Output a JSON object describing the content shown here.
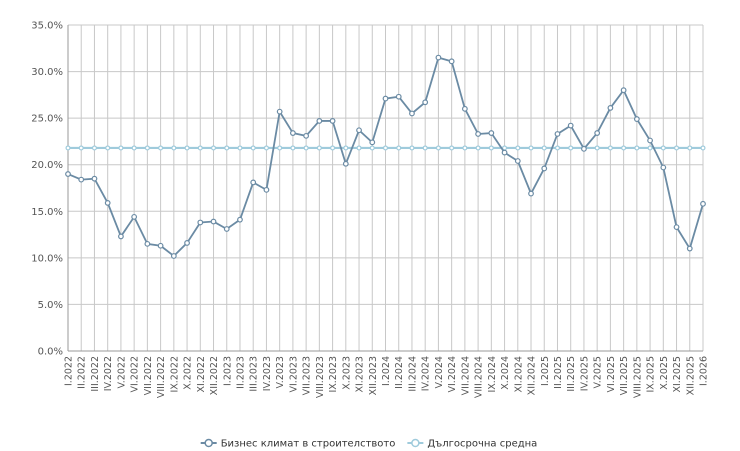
{
  "chart_data": {
    "type": "line",
    "title": "",
    "xlabel": "",
    "ylabel": "",
    "ylim": [
      0,
      35
    ],
    "yticks": [
      "0.0%",
      "5.0%",
      "10.0%",
      "15.0%",
      "20.0%",
      "25.0%",
      "30.0%",
      "35.0%"
    ],
    "grid": true,
    "legend_position": "bottom-center",
    "categories": [
      "I.2022",
      "II.2022",
      "III.2022",
      "IV.2022",
      "V.2022",
      "VI.2022",
      "VII.2022",
      "VIII.2022",
      "IX.2022",
      "X.2022",
      "XI.2022",
      "XII.2022",
      "I.2023",
      "II.2023",
      "III.2023",
      "IV.2023",
      "V.2023",
      "VI.2023",
      "VII.2023",
      "VIII.2023",
      "IX.2023",
      "X.2023",
      "XI.2023",
      "XII.2023",
      "I.2024",
      "II.2024",
      "III.2024",
      "IV.2024",
      "V.2024",
      "VI.2024",
      "VII.2024",
      "VIII.2024",
      "IX.2024",
      "X.2024",
      "XI.2024",
      "XII.2024",
      "I.2025",
      "II.2025",
      "III.2025",
      "IV.2025",
      "V.2025",
      "VI.2025",
      "VII.2025",
      "VIII.2025",
      "IX.2025",
      "X.2025",
      "XI.2025",
      "XII.2025",
      "I.2026"
    ],
    "series": [
      {
        "name": "Бизнес климат в строителството",
        "color": "#6b8ba4",
        "values": [
          19.0,
          18.4,
          18.5,
          15.9,
          12.3,
          14.4,
          11.5,
          11.3,
          10.2,
          11.6,
          13.8,
          13.9,
          13.1,
          14.1,
          18.1,
          17.3,
          25.7,
          23.4,
          23.1,
          24.7,
          24.7,
          20.1,
          23.7,
          22.4,
          27.1,
          27.3,
          25.5,
          26.7,
          31.5,
          31.1,
          26.0,
          23.3,
          23.4,
          21.3,
          20.4,
          16.9,
          19.6,
          23.3,
          24.2,
          21.7,
          23.4,
          26.1,
          28.0,
          24.9,
          22.6,
          19.7,
          13.3,
          11.0,
          15.8
        ]
      },
      {
        "name": "Дългосрочна средна",
        "color": "#9fcbdc",
        "values": [
          21.8,
          21.8,
          21.8,
          21.8,
          21.8,
          21.8,
          21.8,
          21.8,
          21.8,
          21.8,
          21.8,
          21.8,
          21.8,
          21.8,
          21.8,
          21.8,
          21.8,
          21.8,
          21.8,
          21.8,
          21.8,
          21.8,
          21.8,
          21.8,
          21.8,
          21.8,
          21.8,
          21.8,
          21.8,
          21.8,
          21.8,
          21.8,
          21.8,
          21.8,
          21.8,
          21.8,
          21.8,
          21.8,
          21.8,
          21.8,
          21.8,
          21.8,
          21.8,
          21.8,
          21.8,
          21.8,
          21.8,
          21.8,
          21.8
        ]
      }
    ]
  }
}
